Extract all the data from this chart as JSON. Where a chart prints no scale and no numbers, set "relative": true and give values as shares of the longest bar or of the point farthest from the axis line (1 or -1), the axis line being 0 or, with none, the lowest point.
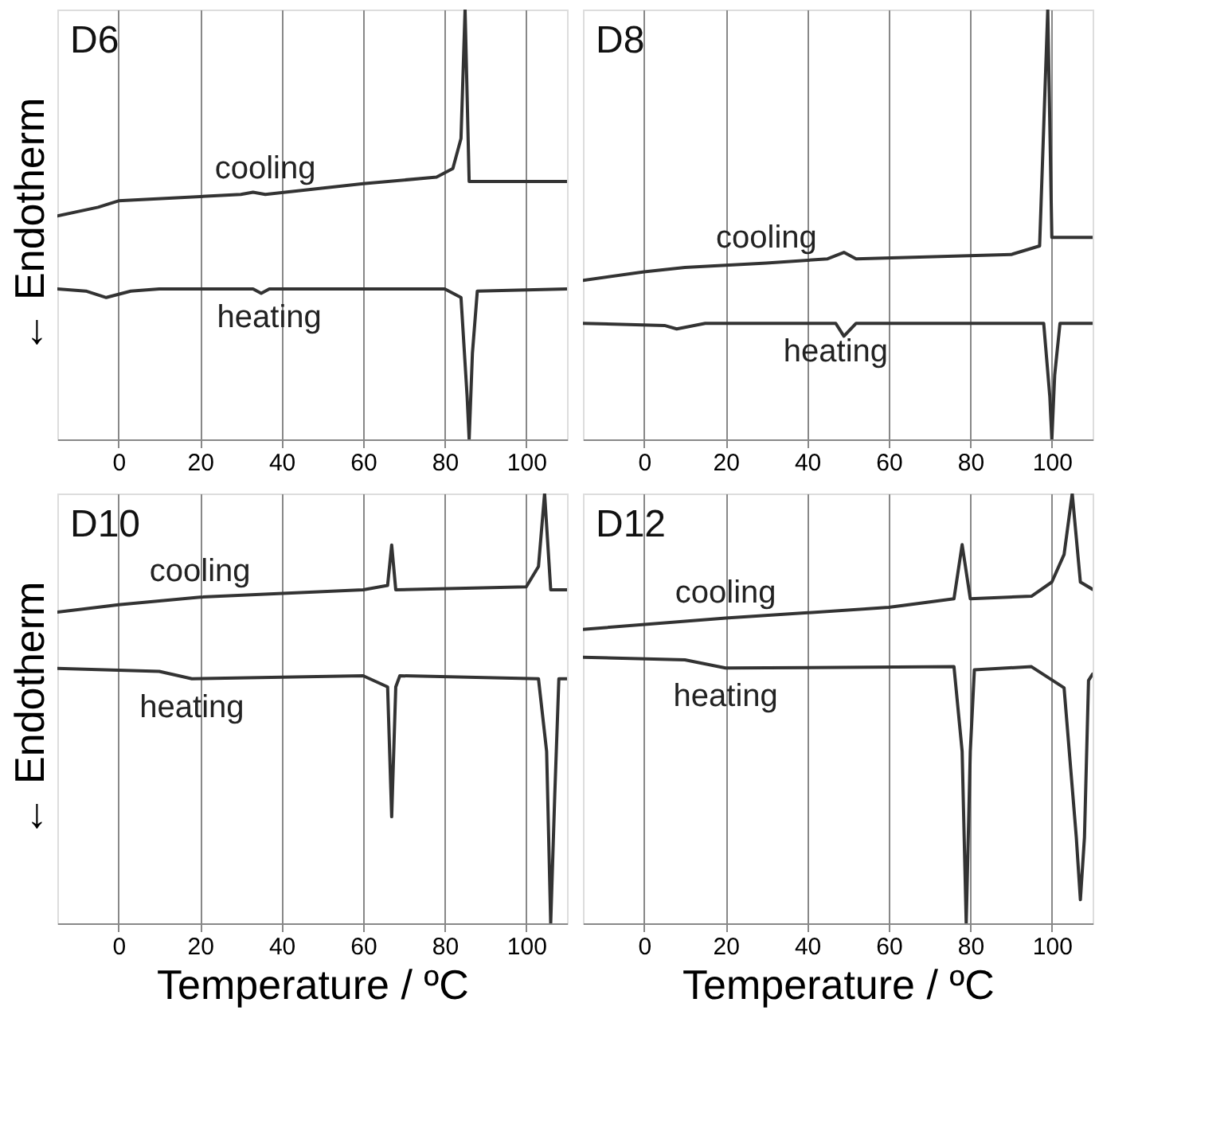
{
  "chart_data": [
    {
      "type": "line",
      "title": "D6",
      "ylabel": "← Endotherm",
      "xlim": [
        -15,
        110
      ],
      "xticks": [
        0,
        20,
        40,
        60,
        80,
        100
      ],
      "grid": "x",
      "relative": true,
      "series": [
        {
          "name": "cooling",
          "color": "#333333",
          "x": [
            -15,
            -5,
            0,
            20,
            30,
            33,
            36,
            60,
            78,
            82,
            84,
            85,
            86,
            87,
            110
          ],
          "values": [
            0.52,
            0.54,
            0.555,
            0.565,
            0.57,
            0.575,
            0.57,
            0.595,
            0.61,
            0.63,
            0.7,
            1.0,
            0.6,
            0.6,
            0.6
          ]
        },
        {
          "name": "heating",
          "color": "#333333",
          "x": [
            -15,
            -8,
            -3,
            3,
            10,
            33,
            35,
            37,
            80,
            84,
            85.5,
            86,
            86.8,
            88,
            110
          ],
          "values": [
            0.35,
            0.345,
            0.33,
            0.345,
            0.35,
            0.35,
            0.34,
            0.35,
            0.35,
            0.33,
            0.1,
            0,
            0.2,
            0.345,
            0.35
          ]
        }
      ]
    },
    {
      "type": "line",
      "title": "D8",
      "xlim": [
        -15,
        110
      ],
      "xticks": [
        0,
        20,
        40,
        60,
        80,
        100
      ],
      "grid": "x",
      "relative": true,
      "series": [
        {
          "name": "cooling",
          "color": "#333333",
          "x": [
            -15,
            0,
            10,
            30,
            45,
            49,
            52,
            90,
            97,
            99,
            100,
            110
          ],
          "values": [
            0.37,
            0.39,
            0.4,
            0.41,
            0.42,
            0.435,
            0.42,
            0.43,
            0.45,
            1.0,
            0.47,
            0.47
          ]
        },
        {
          "name": "heating",
          "color": "#333333",
          "x": [
            -15,
            5,
            8,
            15,
            47,
            49,
            52,
            98,
            99.5,
            100,
            100.7,
            102,
            110
          ],
          "values": [
            0.27,
            0.265,
            0.257,
            0.27,
            0.27,
            0.24,
            0.27,
            0.27,
            0.1,
            0,
            0.15,
            0.27,
            0.27
          ]
        }
      ]
    },
    {
      "type": "line",
      "title": "D10",
      "xlabel": "Temperature / ºC",
      "ylabel": "← Endotherm",
      "xlim": [
        -15,
        110
      ],
      "xticks": [
        0,
        20,
        40,
        60,
        80,
        100
      ],
      "grid": "x",
      "relative": true,
      "series": [
        {
          "name": "cooling",
          "color": "#333333",
          "x": [
            -15,
            0,
            20,
            60,
            66,
            67,
            68,
            100,
            103,
            104.5,
            106,
            110
          ],
          "values": [
            0.724,
            0.741,
            0.759,
            0.776,
            0.786,
            0.88,
            0.776,
            0.783,
            0.83,
            1.0,
            0.776,
            0.776
          ]
        },
        {
          "name": "heating",
          "color": "#333333",
          "x": [
            -15,
            10,
            18,
            60,
            66,
            67,
            68,
            69,
            103,
            105,
            106,
            107,
            108,
            110
          ],
          "values": [
            0.593,
            0.586,
            0.569,
            0.576,
            0.55,
            0.248,
            0.55,
            0.576,
            0.569,
            0.4,
            0,
            0.3,
            0.569,
            0.569
          ]
        }
      ]
    },
    {
      "type": "line",
      "title": "D12",
      "xlabel": "Temperature / ºC",
      "xlim": [
        -15,
        110
      ],
      "xticks": [
        0,
        20,
        40,
        60,
        80,
        100
      ],
      "grid": "x",
      "relative": true,
      "series": [
        {
          "name": "cooling",
          "color": "#333333",
          "x": [
            -15,
            20,
            60,
            76,
            78,
            80,
            95,
            100,
            103,
            105,
            107,
            110
          ],
          "values": [
            0.684,
            0.71,
            0.735,
            0.755,
            0.881,
            0.755,
            0.761,
            0.794,
            0.858,
            1.0,
            0.794,
            0.777
          ]
        },
        {
          "name": "heating",
          "color": "#333333",
          "x": [
            -15,
            10,
            20,
            76,
            78,
            79,
            80,
            81,
            95,
            103,
            106,
            107,
            108,
            109,
            110
          ],
          "values": [
            0.619,
            0.613,
            0.594,
            0.597,
            0.4,
            0,
            0.4,
            0.59,
            0.597,
            0.548,
            0.2,
            0.055,
            0.2,
            0.565,
            0.58
          ]
        }
      ]
    }
  ]
}
